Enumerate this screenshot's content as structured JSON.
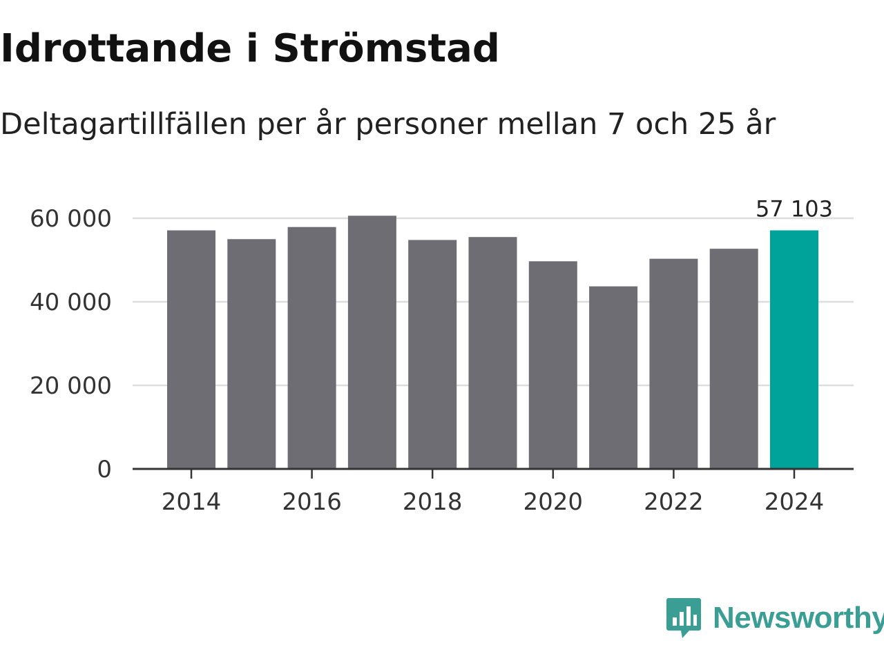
{
  "title": "Idrottande i Strömstad",
  "subtitle": "Deltagartillfällen per år personer mellan 7 och 25 år",
  "brand": {
    "name": "Newsworthy",
    "color": "#3a9e95",
    "icon": "newsworthy-logo-icon"
  },
  "colors": {
    "bar": "#6e6d73",
    "highlight": "#00a39a",
    "grid": "#dddddd",
    "axis": "#333333"
  },
  "chart_data": {
    "type": "bar",
    "title": "Idrottande i Strömstad",
    "subtitle": "Deltagartillfällen per år personer mellan 7 och 25 år",
    "xlabel": "",
    "ylabel": "",
    "categories": [
      "2014",
      "2015",
      "2016",
      "2017",
      "2018",
      "2019",
      "2020",
      "2021",
      "2022",
      "2023",
      "2024"
    ],
    "values": [
      57100,
      55000,
      57900,
      60600,
      54800,
      55500,
      49700,
      43700,
      50300,
      52700,
      57103
    ],
    "highlight_index": 10,
    "data_labels": [
      {
        "index": 10,
        "text": "57 103"
      }
    ],
    "xticks": [
      "2014",
      "2016",
      "2018",
      "2020",
      "2022",
      "2024"
    ],
    "yticks": [
      {
        "value": 0,
        "label": "0"
      },
      {
        "value": 20000,
        "label": "20 000"
      },
      {
        "value": 40000,
        "label": "40 000"
      },
      {
        "value": 60000,
        "label": "60 000"
      }
    ],
    "ylim": [
      0,
      60000
    ],
    "grid": true,
    "legend": "none"
  }
}
